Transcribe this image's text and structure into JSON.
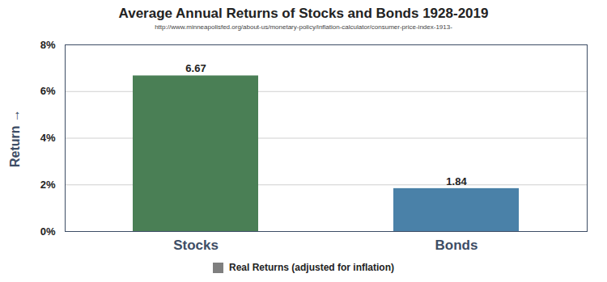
{
  "chart_data": {
    "type": "bar",
    "title": "Average Annual Returns of Stocks and Bonds 1928-2019",
    "subtitle": "http://www.minneapolisfed.org/about-us/monetary-policy/inflation-calculator/consumer-price-index-1913-",
    "y_label": "Return",
    "categories": [
      "Stocks",
      "Bonds"
    ],
    "series": [
      {
        "name": "Real Returns (adjusted for inflation)",
        "color": "#7f7f7f",
        "colors": [
          "#4a7f55",
          "#4a81a8"
        ],
        "values": [
          6.67,
          1.84
        ]
      }
    ],
    "ylim": [
      0,
      8
    ],
    "yticks": [
      {
        "value": 0,
        "label": "0%"
      },
      {
        "value": 2,
        "label": "2%"
      },
      {
        "value": 4,
        "label": "4%"
      },
      {
        "value": 6,
        "label": "6%"
      },
      {
        "value": 8,
        "label": "8%"
      }
    ],
    "grid": true,
    "data_labels": true,
    "legend": "bottom"
  }
}
